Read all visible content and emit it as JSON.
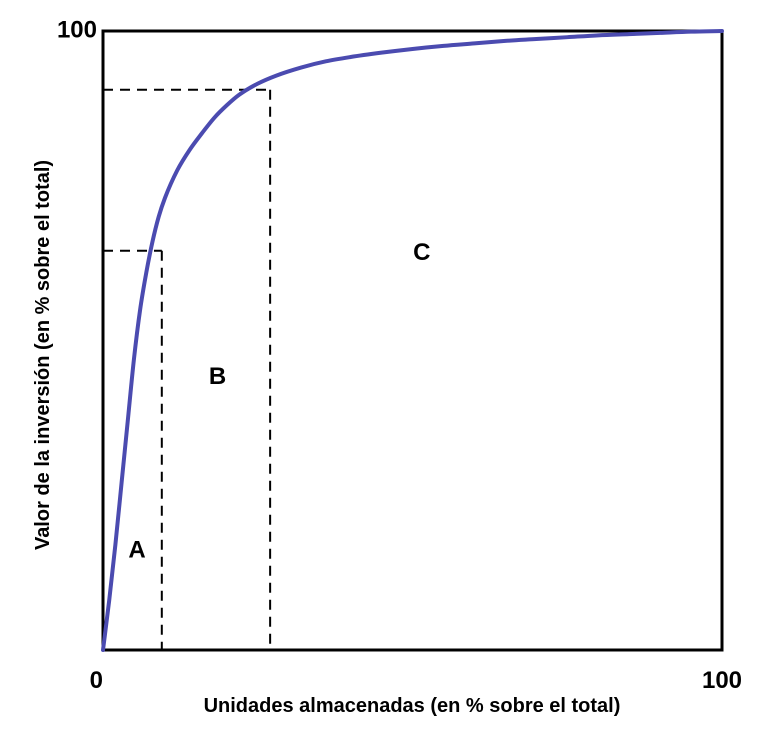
{
  "chart_data": {
    "type": "line",
    "title": "",
    "xlabel": "Unidades almacenadas (en % sobre el total)",
    "ylabel": "Valor de la inversión (en % sobre el total)",
    "xlim": [
      0,
      100
    ],
    "ylim": [
      0,
      100
    ],
    "x_ticks": [
      {
        "value": 0,
        "label": "0"
      },
      {
        "value": 100,
        "label": "100"
      }
    ],
    "y_ticks": [
      {
        "value": 100,
        "label": "100"
      }
    ],
    "grid": false,
    "series": [
      {
        "color": "#4b4bb0",
        "x": [
          0,
          1,
          2,
          3,
          4,
          5,
          6,
          7,
          8,
          9,
          10,
          12,
          14,
          16,
          18,
          20,
          22,
          25,
          28,
          32,
          36,
          40,
          45,
          50,
          55,
          60,
          65,
          70,
          75,
          80,
          85,
          90,
          95,
          100
        ],
        "y": [
          0,
          8,
          17,
          27,
          37,
          47,
          55,
          61,
          66,
          70,
          73,
          77.5,
          80.8,
          83.5,
          86,
          88,
          89.7,
          91.5,
          92.8,
          94.1,
          95.1,
          95.8,
          96.5,
          97.1,
          97.6,
          98,
          98.4,
          98.7,
          99,
          99.3,
          99.5,
          99.7,
          99.9,
          100
        ]
      }
    ],
    "dividers": [
      {
        "x": 9.5,
        "y": 64.5
      },
      {
        "x": 27,
        "y": 90.5
      }
    ],
    "zones": [
      {
        "label": "A",
        "x": 5.5,
        "y": 16
      },
      {
        "label": "B",
        "x": 18.5,
        "y": 44
      },
      {
        "label": "C",
        "x": 51.5,
        "y": 64
      }
    ],
    "frame_color": "#000000",
    "divider_color": "#000000"
  }
}
